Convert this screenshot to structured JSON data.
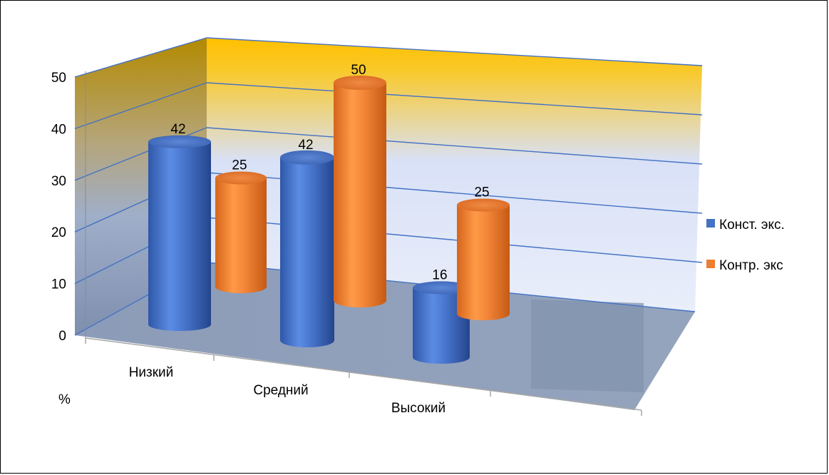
{
  "chart_data": {
    "type": "bar",
    "style": "3d-cylinder",
    "categories": [
      "Низкий",
      "Средний",
      "Высокий"
    ],
    "series": [
      {
        "name": "Конст. экс.",
        "values": [
          42,
          42,
          16
        ],
        "color": "#4472C4"
      },
      {
        "name": "Контр. экс",
        "values": [
          25,
          50,
          25
        ],
        "color": "#ED7D31"
      }
    ],
    "ylabel": "%",
    "ylim": [
      0,
      50
    ],
    "yticks": [
      0,
      10,
      20,
      30,
      40,
      50
    ],
    "grid": true,
    "legend_position": "right",
    "colors": {
      "wall_top": "#FFC000",
      "wall_bottom": "#DDE6F8",
      "floor": "#8496B0",
      "gridline": "#4472C4"
    }
  }
}
